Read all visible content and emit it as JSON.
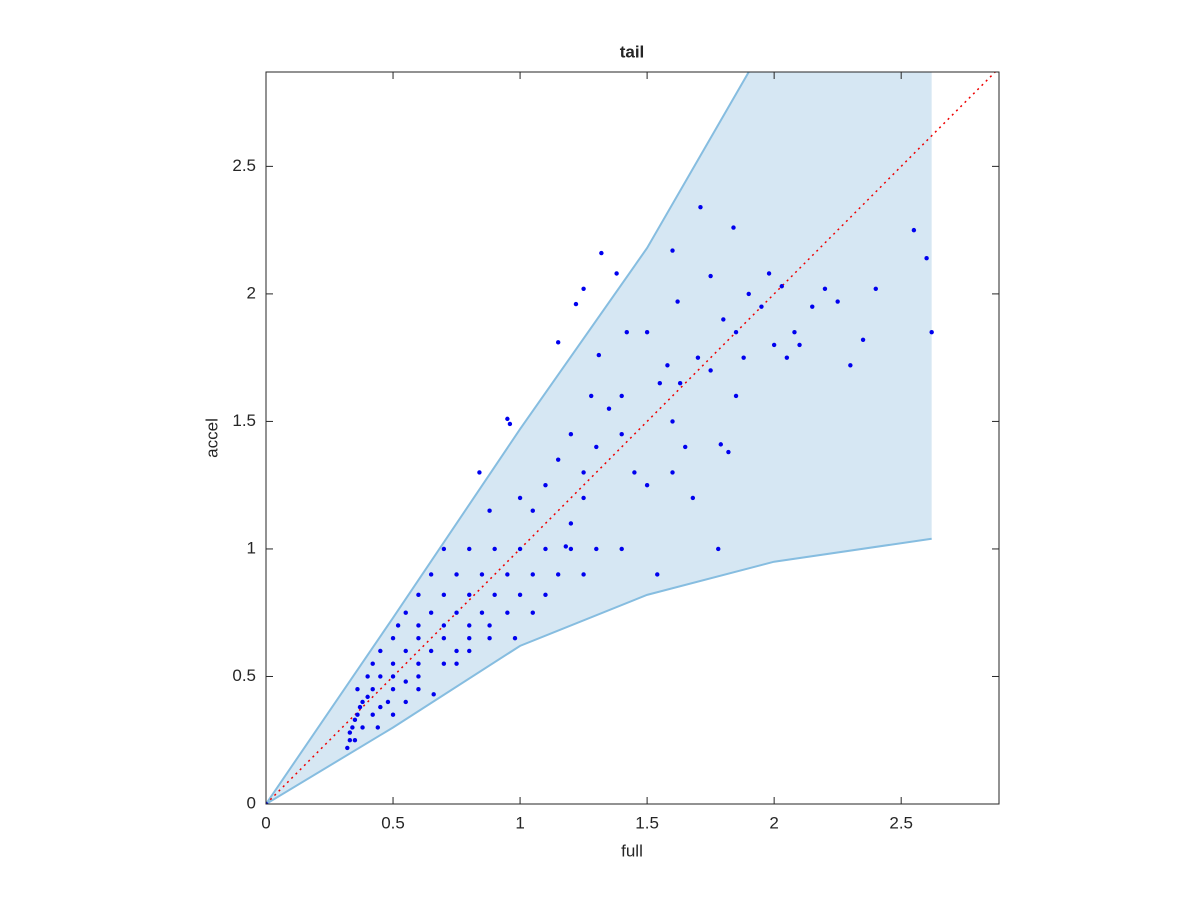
{
  "chart_data": {
    "type": "scatter",
    "title": "tail",
    "xlabel": "full",
    "ylabel": "accel",
    "xlim": [
      0,
      2.885
    ],
    "ylim": [
      0,
      2.87
    ],
    "xticks": [
      0,
      0.5,
      1,
      1.5,
      2,
      2.5
    ],
    "yticks": [
      0,
      0.5,
      1,
      1.5,
      2,
      2.5
    ],
    "color": "#0000ee",
    "reference_line_color": "#ee0000",
    "band": {
      "color": "#d6e7f3",
      "edge_color": "#86bde0",
      "x": [
        0,
        0.5,
        1,
        1.5,
        1.9,
        2.62
      ],
      "upper": [
        0,
        0.73,
        1.47,
        2.18,
        2.87,
        2.87
      ],
      "lower_x": [
        0,
        0.5,
        1,
        1.5,
        2,
        2.62
      ],
      "lower": [
        0,
        0.3,
        0.62,
        0.82,
        0.95,
        1.04
      ]
    },
    "x": [
      0,
      0.32,
      0.33,
      0.33,
      0.34,
      0.35,
      0.36,
      0.37,
      0.38,
      0.4,
      0.42,
      0.35,
      0.38,
      0.42,
      0.45,
      0.48,
      0.5,
      0.36,
      0.4,
      0.45,
      0.5,
      0.55,
      0.6,
      0.44,
      0.5,
      0.55,
      0.6,
      0.42,
      0.5,
      0.6,
      0.7,
      0.75,
      0.45,
      0.55,
      0.65,
      0.75,
      0.8,
      0.5,
      0.6,
      0.7,
      0.8,
      0.88,
      0.52,
      0.6,
      0.7,
      0.8,
      0.88,
      0.55,
      0.65,
      0.75,
      0.85,
      0.95,
      1.05,
      0.6,
      0.7,
      0.8,
      0.9,
      1.0,
      1.1,
      0.65,
      0.75,
      0.85,
      0.95,
      1.05,
      1.15,
      1.25,
      0.7,
      0.8,
      0.9,
      1.0,
      1.1,
      1.2,
      1.3,
      1.4,
      0.98,
      0.66,
      0.84,
      0.95,
      0.96,
      1.15,
      1.22,
      1.25,
      1.32,
      1.38,
      1.31,
      1.1,
      1.15,
      1.2,
      1.25,
      1.3,
      1.35,
      1.4,
      1.45,
      1.5,
      1.55,
      1.6,
      1.65,
      1.7,
      1.75,
      1.8,
      1.85,
      1.9,
      1.95,
      2.0,
      2.05,
      2.1,
      2.15,
      2.2,
      2.25,
      2.3,
      2.35,
      2.4,
      2.55,
      2.6,
      2.62,
      1.71,
      1.84,
      1.6,
      1.78,
      1.54,
      1.79,
      1.82,
      1.2,
      1.05,
      1.0,
      1.28,
      1.42,
      1.5,
      1.62,
      1.75,
      1.98,
      2.03,
      0.88,
      1.18,
      1.25,
      1.4,
      1.6,
      1.68,
      1.88,
      2.08,
      1.58,
      1.63,
      1.85
    ],
    "values": [
      0,
      0.22,
      0.25,
      0.28,
      0.3,
      0.33,
      0.35,
      0.38,
      0.4,
      0.42,
      0.45,
      0.25,
      0.3,
      0.35,
      0.38,
      0.4,
      0.45,
      0.45,
      0.5,
      0.5,
      0.5,
      0.48,
      0.45,
      0.3,
      0.35,
      0.4,
      0.5,
      0.55,
      0.55,
      0.55,
      0.55,
      0.55,
      0.6,
      0.6,
      0.6,
      0.6,
      0.6,
      0.65,
      0.65,
      0.65,
      0.65,
      0.65,
      0.7,
      0.7,
      0.7,
      0.7,
      0.7,
      0.75,
      0.75,
      0.75,
      0.75,
      0.75,
      0.75,
      0.82,
      0.82,
      0.82,
      0.82,
      0.82,
      0.82,
      0.9,
      0.9,
      0.9,
      0.9,
      0.9,
      0.9,
      0.9,
      1.0,
      1.0,
      1.0,
      1.0,
      1.0,
      1.0,
      1.0,
      1.0,
      0.65,
      0.43,
      1.3,
      1.51,
      1.49,
      1.81,
      1.96,
      2.02,
      2.16,
      2.08,
      1.76,
      1.25,
      1.35,
      1.45,
      1.3,
      1.4,
      1.55,
      1.45,
      1.3,
      1.25,
      1.65,
      1.5,
      1.4,
      1.75,
      1.7,
      1.9,
      1.85,
      2.0,
      1.95,
      1.8,
      1.75,
      1.8,
      1.95,
      2.02,
      1.97,
      1.72,
      1.82,
      2.02,
      2.25,
      2.14,
      1.85,
      2.34,
      2.26,
      2.17,
      1.0,
      0.9,
      1.41,
      1.38,
      1.1,
      1.15,
      1.2,
      1.6,
      1.85,
      1.85,
      1.97,
      2.07,
      2.08,
      2.03,
      1.15,
      1.01,
      1.2,
      1.6,
      1.3,
      1.2,
      1.75,
      1.85,
      1.72,
      1.65,
      1.6
    ]
  }
}
